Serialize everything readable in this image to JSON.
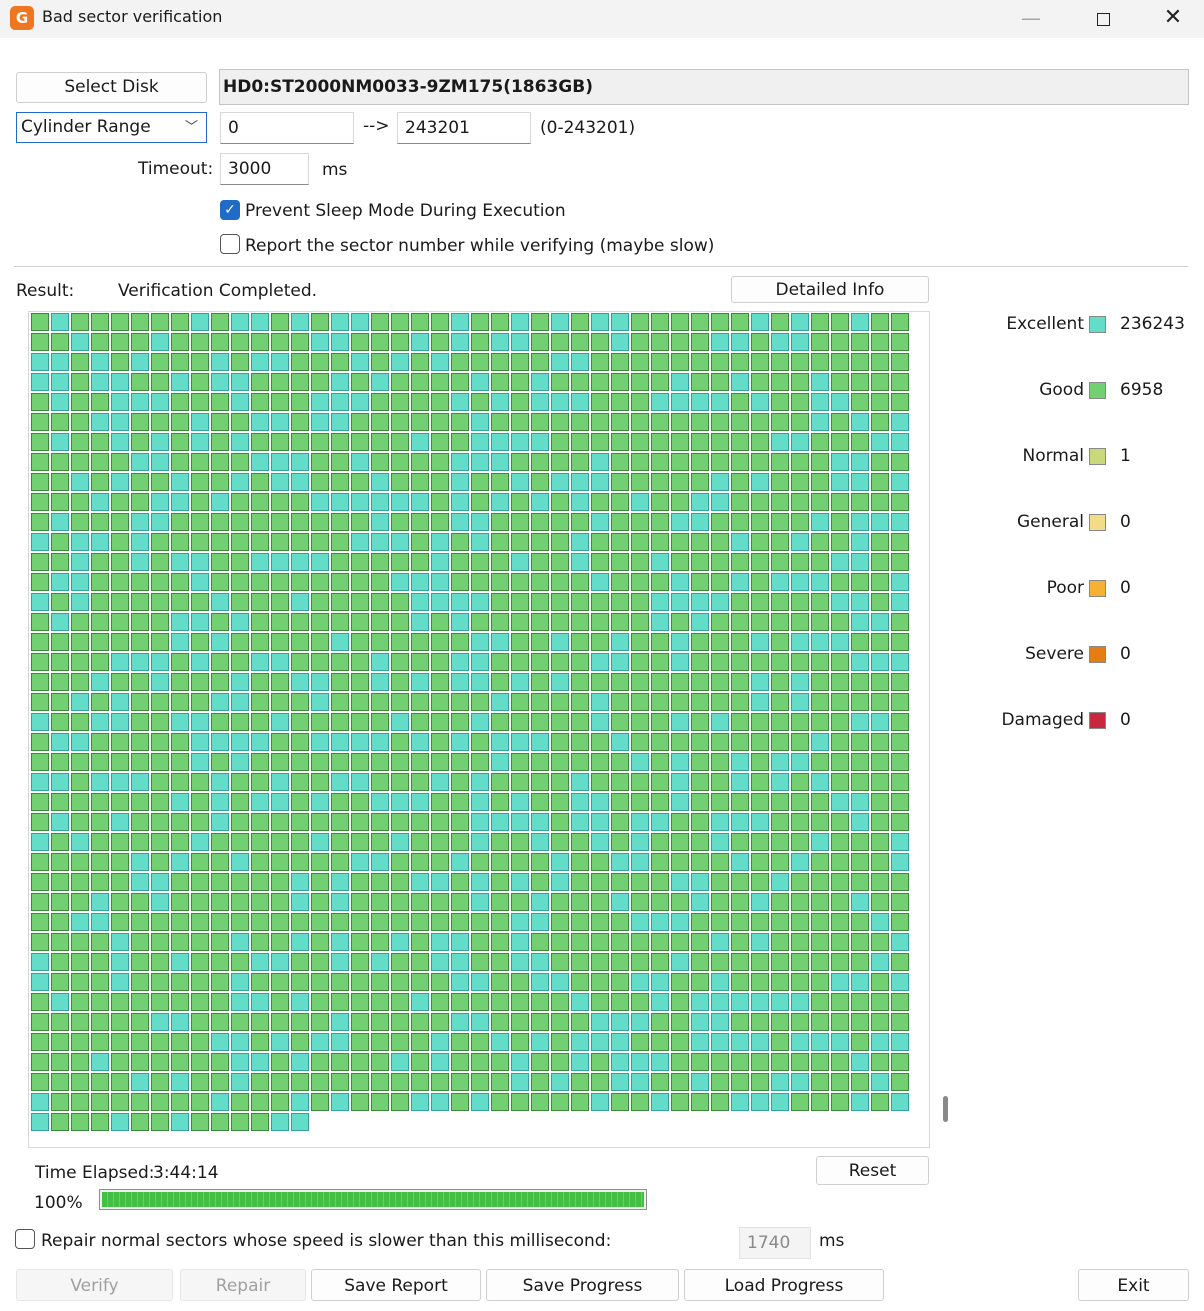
{
  "window": {
    "title": "Bad sector verification",
    "app_icon": "G",
    "controls": [
      "minimize-icon",
      "maximize-icon",
      "close-icon"
    ]
  },
  "disk": {
    "select_label": "Select Disk",
    "name": "HD0:ST2000NM0033-9ZM175(1863GB)"
  },
  "range": {
    "mode": "Cylinder Range",
    "start": "0",
    "arrow": "-->",
    "end": "243201",
    "hint": "(0-243201)"
  },
  "timeout": {
    "label": "Timeout:",
    "value": "3000",
    "unit": "ms"
  },
  "options": {
    "prevent_sleep": {
      "label": "Prevent Sleep Mode During Execution",
      "checked": true
    },
    "report_sector": {
      "label": "Report the sector number while verifying (maybe slow)",
      "checked": false
    }
  },
  "result": {
    "label": "Result:",
    "status": "Verification Completed.",
    "detail_button": "Detailed Info"
  },
  "legend": [
    {
      "name": "Excellent",
      "count": "236243",
      "color": "#63dcc8"
    },
    {
      "name": "Good",
      "count": "6958",
      "color": "#72cf72"
    },
    {
      "name": "Normal",
      "count": "1",
      "color": "#c8d87a"
    },
    {
      "name": "General",
      "count": "0",
      "color": "#f2dc88"
    },
    {
      "name": "Poor",
      "count": "0",
      "color": "#f5b133"
    },
    {
      "name": "Severe",
      "count": "0",
      "color": "#e47d14"
    },
    {
      "name": "Damaged",
      "count": "0",
      "color": "#c8283c"
    }
  ],
  "block_grid": {
    "columns": 44,
    "full_rows": 40,
    "last_row_blocks": 14,
    "states": [
      "excellent",
      "good"
    ]
  },
  "progress": {
    "elapsed_label": "Time Elapsed:",
    "elapsed": "3:44:14",
    "percent_label": "100%",
    "fraction": 1.0,
    "reset_label": "Reset"
  },
  "repair_option": {
    "label": "Repair normal sectors whose speed is slower than this millisecond:",
    "checked": false,
    "value": "1740",
    "unit": "ms"
  },
  "footer": {
    "verify": "Verify",
    "repair": "Repair",
    "save_report": "Save Report",
    "save_progress": "Save Progress",
    "load_progress": "Load Progress",
    "exit": "Exit"
  }
}
